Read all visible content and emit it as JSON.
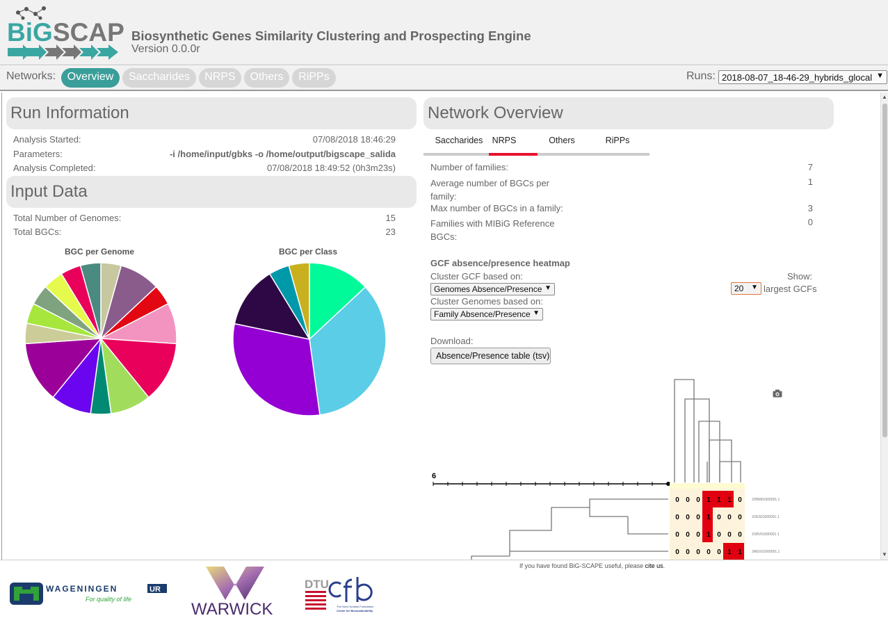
{
  "header": {
    "logo_text_left": "BiG",
    "logo_text_right": "SCAPE",
    "title": "Biosynthetic Genes Similarity Clustering and Prospecting Engine",
    "version": "Version 0.0.0r"
  },
  "nav": {
    "label": "Networks:",
    "tabs": [
      {
        "label": "Overview",
        "active": true
      },
      {
        "label": "Saccharides",
        "active": false
      },
      {
        "label": "NRPS",
        "active": false
      },
      {
        "label": "Others",
        "active": false
      },
      {
        "label": "RiPPs",
        "active": false
      }
    ],
    "runs_label": "Runs:",
    "runs_value": "2018-08-07_18-46-29_hybrids_glocal",
    "accent": "#3a9e9a"
  },
  "run_info": {
    "title": "Run Information",
    "rows": [
      {
        "label": "Analysis Started:",
        "value": "07/08/2018 18:46:29"
      },
      {
        "label": "Parameters:",
        "value": "-i /home/input/gbks -o /home/output/bigscape_salida"
      },
      {
        "label": "Analysis Completed:",
        "value": "07/08/2018 18:49:52 (0h3m23s)"
      }
    ]
  },
  "input_data": {
    "title": "Input Data",
    "rows": [
      {
        "label": "Total Number of Genomes:",
        "value": "15"
      },
      {
        "label": "Total BGCs:",
        "value": "23"
      }
    ]
  },
  "charts": {
    "genome_title": "BGC per Genome",
    "class_title": "BGC per Class"
  },
  "chart_data": [
    {
      "type": "pie",
      "title": "BGC per Genome",
      "values": [
        1,
        2,
        1,
        2,
        3,
        2,
        1,
        2,
        3,
        1,
        1,
        1,
        1,
        1,
        1
      ],
      "colors": [
        "#c8c8a0",
        "#8a5c8c",
        "#e30613",
        "#f394c0",
        "#e8005a",
        "#a2dc5c",
        "#008a73",
        "#6b05ef",
        "#9b0098",
        "#cccc99",
        "#a6e63d",
        "#7fa27f",
        "#e6f94d",
        "#e8005a",
        "#4a8a80"
      ]
    },
    {
      "type": "pie",
      "title": "BGC per Class",
      "values": [
        3,
        8,
        7,
        3,
        1,
        1
      ],
      "colors": [
        "#00fa9a",
        "#5bcde6",
        "#9400d3",
        "#2e0845",
        "#0099aa",
        "#c9b01e"
      ]
    }
  ],
  "network_overview": {
    "title": "Network Overview",
    "tabs": [
      {
        "label": "Saccharides",
        "active": false
      },
      {
        "label": "NRPS",
        "active": true
      },
      {
        "label": "Others",
        "active": false
      },
      {
        "label": "RiPPs",
        "active": false
      }
    ],
    "stats": [
      {
        "label": "Number of families:",
        "value": "7"
      },
      {
        "label": "Average number of BGCs per family:",
        "value": "1"
      },
      {
        "label": "Max number of BGCs in a family:",
        "value": "3"
      },
      {
        "label": "Families with MIBiG Reference BGCs:",
        "value": "0"
      }
    ],
    "heatmap_title": "GCF absence/presence heatmap",
    "cluster_gcf_label": "Cluster GCF based on:",
    "cluster_gcf_value": "Genomes Absence/Presence",
    "cluster_genomes_label": "Cluster Genomes based on:",
    "cluster_genomes_value": "Family Absence/Presence",
    "show_label": "Show:",
    "show_value": "20",
    "show_suffix": "largest GCFs",
    "download_label": "Download:",
    "download_button": "Absence/Presence table (tsv)",
    "scale_label": "6",
    "heatmap_rows": [
      {
        "name": "JOBM01000001.1",
        "cells": [
          "0",
          "0",
          "0",
          "1",
          "1",
          "1",
          "0"
        ]
      },
      {
        "name": "JOES01000001.1",
        "cells": [
          "0",
          "0",
          "0",
          "1",
          "0",
          "0",
          "0"
        ]
      },
      {
        "name": "JOBV01000001.1",
        "cells": [
          "0",
          "0",
          "0",
          "1",
          "0",
          "0",
          "0"
        ]
      },
      {
        "name": "JMGX01000001.1",
        "cells": [
          "0",
          "0",
          "0",
          "0",
          "0",
          "1",
          "1"
        ]
      }
    ]
  },
  "footer": {
    "note_prefix": "If you have found BiG-SCAPE useful, please",
    "note_link": "cite us",
    "note_suffix": ".",
    "wur_name": "WAGENINGEN",
    "wur_suffix": "UR",
    "wur_tagline": "For quality of life",
    "warwick": "WARWICK",
    "dtu": "DTU",
    "cfb_line1": "The Novo Nordisk Foundation",
    "cfb_line2": "Center for Biosustainability"
  }
}
